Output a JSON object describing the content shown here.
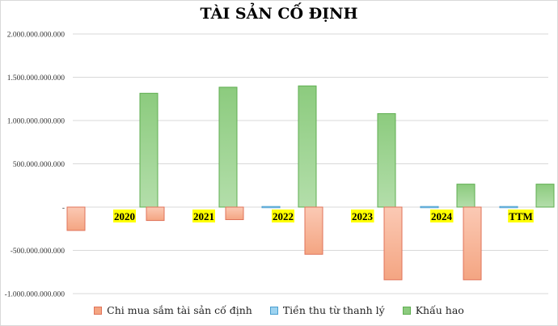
{
  "chart_data": {
    "type": "bar",
    "title": "TÀI SẢN CỐ ĐỊNH",
    "categories": [
      "2020",
      "2021",
      "2022",
      "2023",
      "2024",
      "TTM"
    ],
    "series": [
      {
        "name": "Chi mua sắm tài sản cố định",
        "color": "#f4a582",
        "values": [
          -270000000000,
          -155000000000,
          -145000000000,
          -545000000000,
          -840000000000,
          -840000000000
        ]
      },
      {
        "name": "Tiền thu từ thanh lý",
        "color": "#9dd3f0",
        "values": [
          0,
          0,
          5000000000,
          0,
          5000000000,
          5000000000
        ]
      },
      {
        "name": "Khấu hao",
        "color": "#8ccb7e",
        "values": [
          1315000000000,
          1385000000000,
          1400000000000,
          1080000000000,
          265000000000,
          265000000000
        ]
      }
    ],
    "ylim": [
      -1000000000000,
      2000000000000
    ],
    "yticks": [
      {
        "value": 2000000000000,
        "label": "2.000.000.000.000"
      },
      {
        "value": 1500000000000,
        "label": "1.500.000.000.000"
      },
      {
        "value": 1000000000000,
        "label": "1.000.000.000.000"
      },
      {
        "value": 500000000000,
        "label": "500.000.000.000"
      },
      {
        "value": 0,
        "label": "-"
      },
      {
        "value": -500000000000,
        "label": "-500.000.000.000"
      },
      {
        "value": -1000000000000,
        "label": "-1.000.000.000.000"
      }
    ],
    "grid": true,
    "legend": "bottom"
  }
}
